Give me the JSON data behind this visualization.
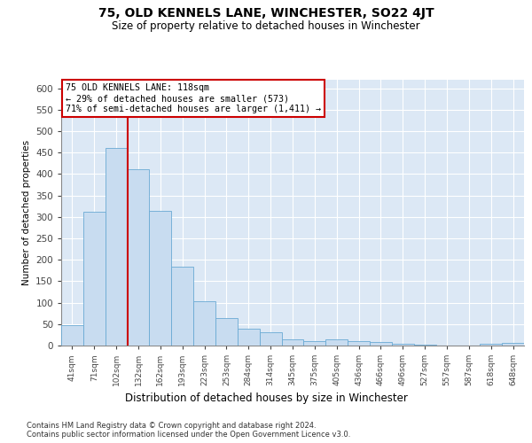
{
  "title": "75, OLD KENNELS LANE, WINCHESTER, SO22 4JT",
  "subtitle": "Size of property relative to detached houses in Winchester",
  "xlabel": "Distribution of detached houses by size in Winchester",
  "ylabel": "Number of detached properties",
  "bar_color": "#c8dcf0",
  "bar_edge_color": "#6aaad4",
  "background_color": "#dce8f5",
  "grid_color": "#ffffff",
  "annotation_box_color": "#ffffff",
  "annotation_box_edge": "#cc0000",
  "vline_color": "#cc0000",
  "annotation_line1": "75 OLD KENNELS LANE: 118sqm",
  "annotation_line2": "← 29% of detached houses are smaller (573)",
  "annotation_line3": "71% of semi-detached houses are larger (1,411) →",
  "footer1": "Contains HM Land Registry data © Crown copyright and database right 2024.",
  "footer2": "Contains public sector information licensed under the Open Government Licence v3.0.",
  "categories": [
    "41sqm",
    "71sqm",
    "102sqm",
    "132sqm",
    "162sqm",
    "193sqm",
    "223sqm",
    "253sqm",
    "284sqm",
    "314sqm",
    "345sqm",
    "375sqm",
    "405sqm",
    "436sqm",
    "466sqm",
    "496sqm",
    "527sqm",
    "557sqm",
    "587sqm",
    "618sqm",
    "648sqm"
  ],
  "values": [
    47,
    312,
    460,
    412,
    314,
    184,
    103,
    65,
    40,
    32,
    14,
    11,
    15,
    10,
    8,
    5,
    2,
    1,
    0,
    5,
    6
  ],
  "ylim": [
    0,
    620
  ],
  "yticks": [
    0,
    50,
    100,
    150,
    200,
    250,
    300,
    350,
    400,
    450,
    500,
    550,
    600
  ]
}
